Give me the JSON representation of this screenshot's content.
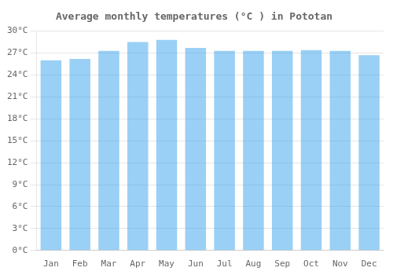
{
  "chart_data": {
    "type": "bar",
    "title": "Average monthly temperatures (°C ) in Pototan",
    "categories": [
      "Jan",
      "Feb",
      "Mar",
      "Apr",
      "May",
      "Jun",
      "Jul",
      "Aug",
      "Sep",
      "Oct",
      "Nov",
      "Dec"
    ],
    "values": [
      26.0,
      26.2,
      27.3,
      28.5,
      28.8,
      27.7,
      27.3,
      27.3,
      27.3,
      27.4,
      27.3,
      26.7
    ],
    "ylim": [
      0,
      30
    ],
    "yticks": [
      {
        "value": 0,
        "label": "0°C"
      },
      {
        "value": 3,
        "label": "3°C"
      },
      {
        "value": 6,
        "label": "6°C"
      },
      {
        "value": 9,
        "label": "9°C"
      },
      {
        "value": 12,
        "label": "12°C"
      },
      {
        "value": 15,
        "label": "15°C"
      },
      {
        "value": 18,
        "label": "18°C"
      },
      {
        "value": 21,
        "label": "21°C"
      },
      {
        "value": 24,
        "label": "24°C"
      },
      {
        "value": 27,
        "label": "27°C"
      },
      {
        "value": 30,
        "label": "30°C"
      }
    ],
    "grid": true
  }
}
